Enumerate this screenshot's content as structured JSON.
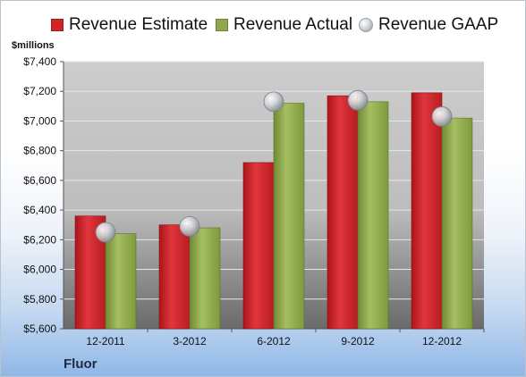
{
  "legend": {
    "estimate": "Revenue Estimate",
    "actual": "Revenue Actual",
    "gaap": "Revenue GAAP"
  },
  "unit_label": "$millions",
  "company": "Fluor",
  "colors": {
    "estimate": "#d2232a",
    "actual": "#8fa84a",
    "gaap": "#c8ccd2",
    "plot_bg_top": "#c9c9c9",
    "plot_bg_bottom": "#6f6f6f"
  },
  "chart_data": {
    "type": "bar",
    "categories": [
      "12-2011",
      "3-2012",
      "6-2012",
      "9-2012",
      "12-2012"
    ],
    "series": [
      {
        "name": "Revenue Estimate",
        "values": [
          6360,
          6300,
          6720,
          7170,
          7190
        ]
      },
      {
        "name": "Revenue Actual",
        "values": [
          6240,
          6280,
          7120,
          7130,
          7020
        ]
      },
      {
        "name": "Revenue GAAP",
        "values": [
          6250,
          6290,
          7130,
          7140,
          7030
        ]
      }
    ],
    "ylabel": "$millions",
    "ylim": [
      5600,
      7400
    ],
    "yticks": [
      5600,
      5800,
      6000,
      6200,
      6400,
      6600,
      6800,
      7000,
      7200,
      7400
    ],
    "ytick_labels": [
      "$5,600",
      "$5,800",
      "$6,000",
      "$6,200",
      "$6,400",
      "$6,600",
      "$6,800",
      "$7,000",
      "$7,200",
      "$7,400"
    ],
    "grid": true,
    "legend_position": "top"
  }
}
